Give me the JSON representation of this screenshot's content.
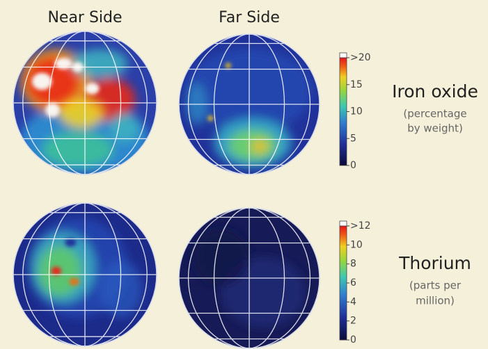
{
  "columns": [
    "Near Side",
    "Far Side"
  ],
  "rows": [
    {
      "title": "Iron oxide",
      "subtitle": [
        "(percentage",
        "by weight)"
      ],
      "scale": [
        ">20",
        "15",
        "10",
        "5",
        "0"
      ]
    },
    {
      "title": "Thorium",
      "subtitle": [
        "(parts per",
        "million)"
      ],
      "scale": [
        ">12",
        "10",
        "8",
        "6",
        "4",
        "2",
        "0"
      ]
    }
  ]
}
